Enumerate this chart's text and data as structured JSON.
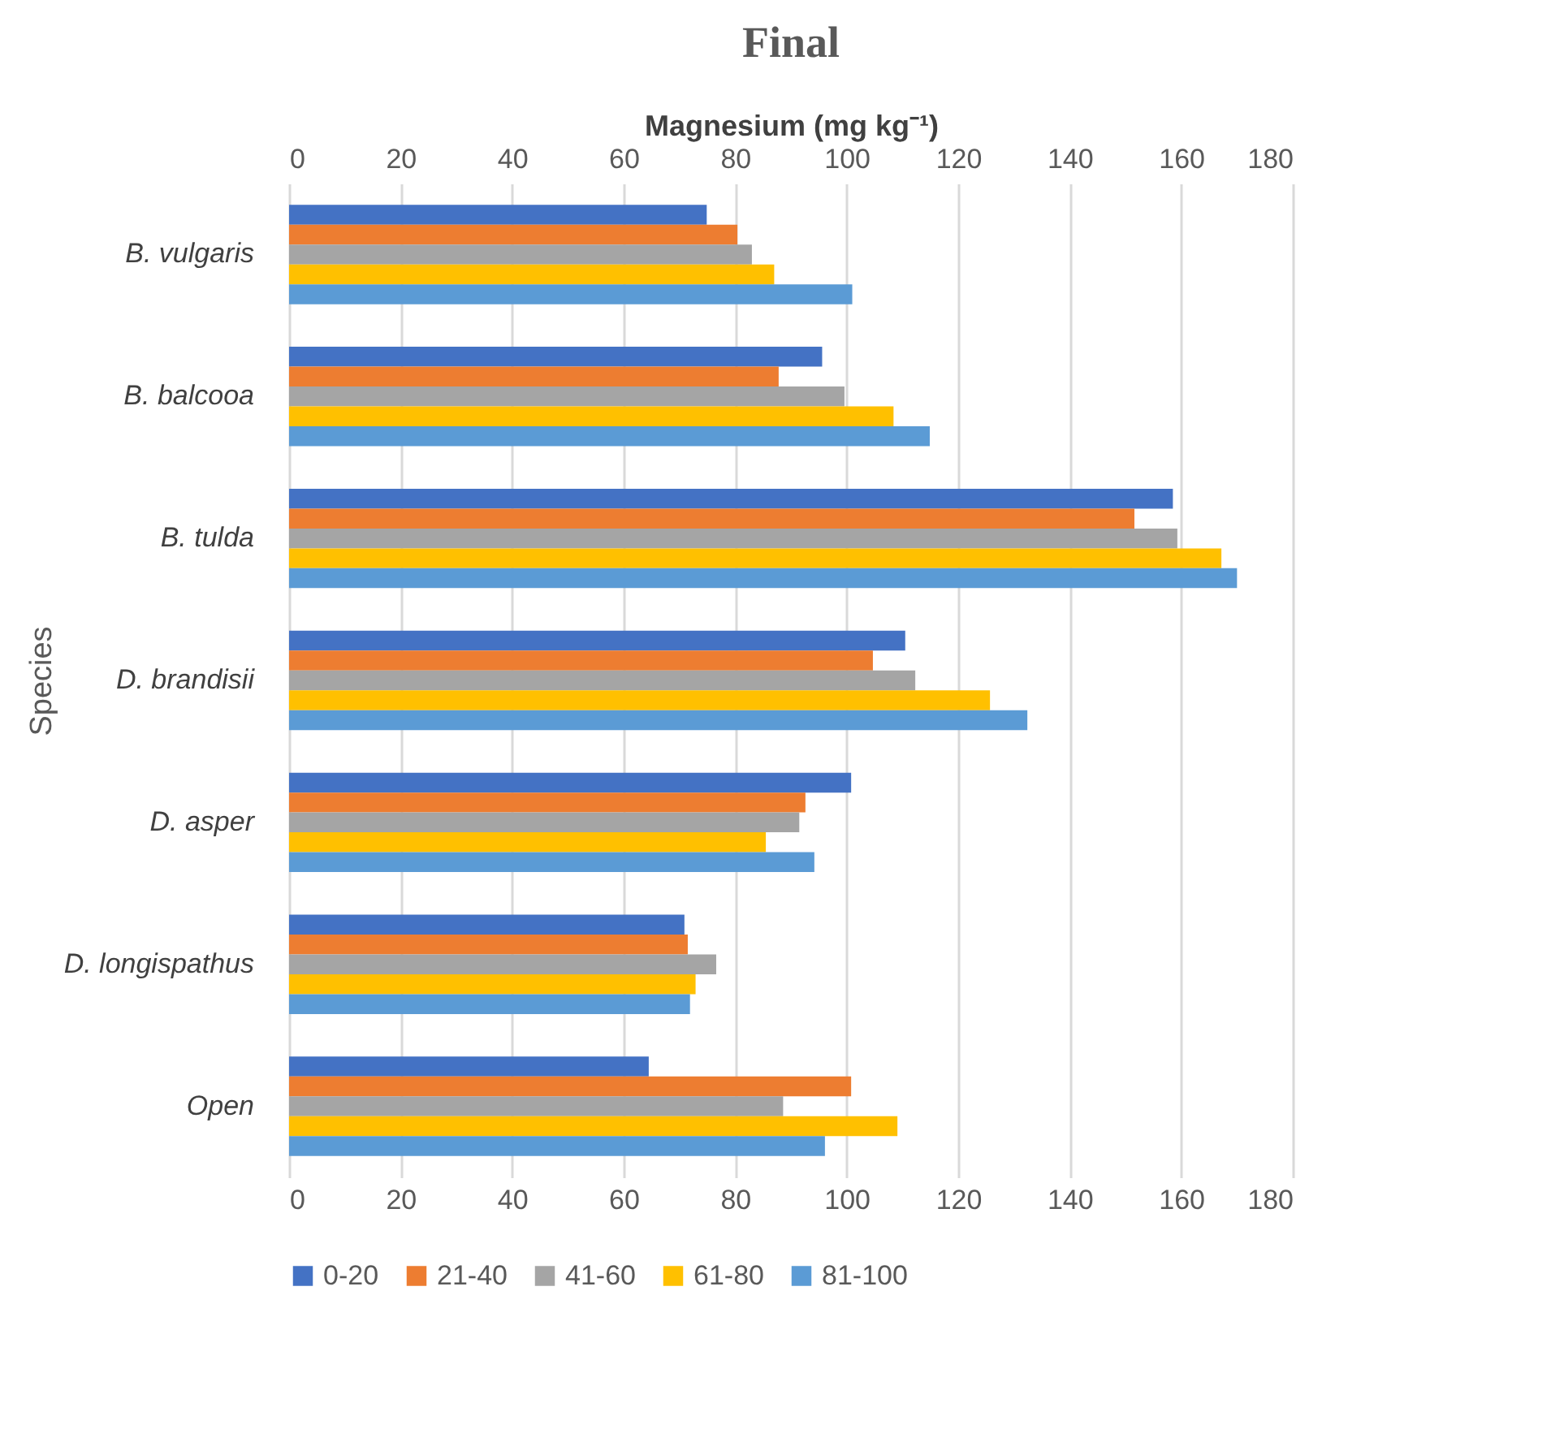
{
  "chart_data": {
    "type": "bar",
    "orientation": "horizontal",
    "title": "Final",
    "x2label": "Magnesium (mg kg⁻¹)",
    "ylabel": "Species",
    "categories": [
      "B. vulgaris",
      "B. balcooa",
      "B. tulda",
      "D. brandisii",
      "D. asper",
      "D. longispathus",
      "Open"
    ],
    "series": [
      {
        "name": "0-20",
        "color": "#4472c4",
        "values": [
          74.9,
          95.6,
          158.5,
          110.5,
          100.8,
          70.9,
          64.5
        ]
      },
      {
        "name": "21-40",
        "color": "#ed7d31",
        "values": [
          80.4,
          87.8,
          151.6,
          104.7,
          92.6,
          71.5,
          100.8
        ]
      },
      {
        "name": "41-60",
        "color": "#a5a5a5",
        "values": [
          83.0,
          99.6,
          159.3,
          112.3,
          91.5,
          76.6,
          88.6
        ]
      },
      {
        "name": "61-80",
        "color": "#ffc000",
        "values": [
          87.0,
          108.4,
          167.2,
          125.7,
          85.5,
          72.9,
          109.1
        ]
      },
      {
        "name": "81-100",
        "color": "#5b9bd5",
        "values": [
          101.0,
          114.9,
          170.0,
          132.4,
          94.2,
          71.9,
          96.1
        ]
      }
    ],
    "xlim": [
      0,
      180
    ],
    "xticks": [
      0,
      20,
      40,
      60,
      80,
      100,
      120,
      140,
      160,
      180
    ],
    "x2lim": [
      0,
      180
    ],
    "x2ticks": [
      0,
      20,
      40,
      60,
      80,
      100,
      120,
      140,
      160,
      180
    ],
    "grid": "x",
    "legend": "bottom"
  }
}
